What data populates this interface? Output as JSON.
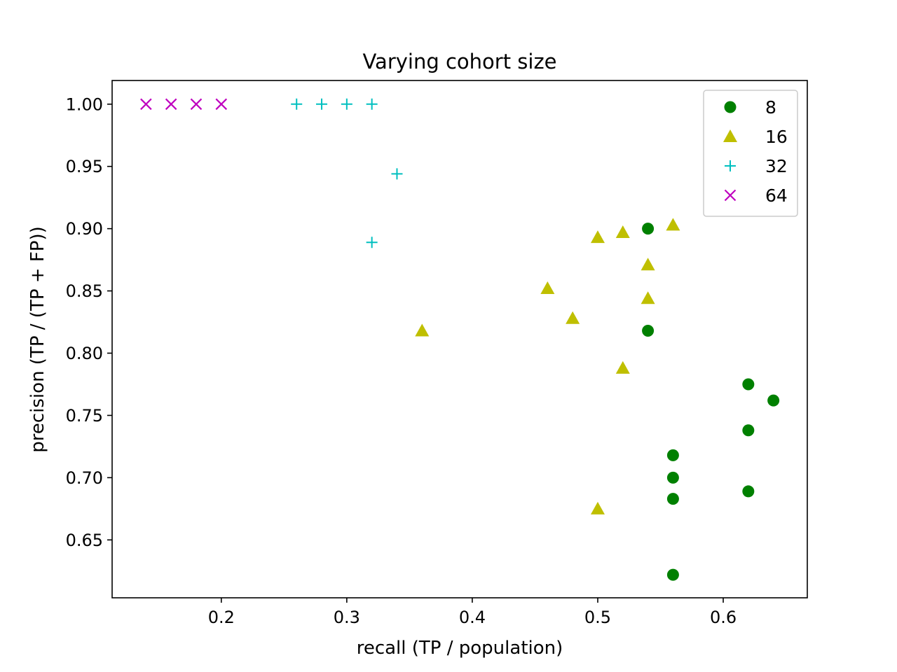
{
  "chart_data": {
    "type": "scatter",
    "title": "Varying cohort size",
    "xlabel": "recall (TP / population)",
    "ylabel": "precision (TP / (TP + FP))",
    "xlim": [
      0.113,
      0.667
    ],
    "ylim": [
      0.6035,
      1.019
    ],
    "xticks": [
      0.2,
      0.3,
      0.4,
      0.5,
      0.6
    ],
    "xtick_labels": [
      "0.2",
      "0.3",
      "0.4",
      "0.5",
      "0.6"
    ],
    "yticks": [
      0.65,
      0.7,
      0.75,
      0.8,
      0.85,
      0.9,
      0.95,
      1.0
    ],
    "ytick_labels": [
      "0.65",
      "0.70",
      "0.75",
      "0.80",
      "0.85",
      "0.90",
      "0.95",
      "1.00"
    ],
    "grid": false,
    "legend_position": "top-right",
    "series": [
      {
        "name": "8",
        "marker": "circle",
        "color": "#008000",
        "points": [
          [
            0.54,
            0.9
          ],
          [
            0.54,
            0.818
          ],
          [
            0.62,
            0.775
          ],
          [
            0.64,
            0.762
          ],
          [
            0.62,
            0.738
          ],
          [
            0.56,
            0.718
          ],
          [
            0.56,
            0.7
          ],
          [
            0.56,
            0.683
          ],
          [
            0.62,
            0.689
          ],
          [
            0.56,
            0.622
          ]
        ]
      },
      {
        "name": "16",
        "marker": "triangle",
        "color": "#bfbf00",
        "points": [
          [
            0.56,
            0.903
          ],
          [
            0.52,
            0.897
          ],
          [
            0.5,
            0.893
          ],
          [
            0.54,
            0.871
          ],
          [
            0.46,
            0.852
          ],
          [
            0.54,
            0.844
          ],
          [
            0.48,
            0.828
          ],
          [
            0.36,
            0.818
          ],
          [
            0.52,
            0.788
          ],
          [
            0.5,
            0.675
          ]
        ]
      },
      {
        "name": "32",
        "marker": "plus",
        "color": "#00bfbf",
        "points": [
          [
            0.26,
            1.0
          ],
          [
            0.28,
            1.0
          ],
          [
            0.3,
            1.0
          ],
          [
            0.32,
            1.0
          ],
          [
            0.34,
            0.944
          ],
          [
            0.32,
            0.889
          ]
        ]
      },
      {
        "name": "64",
        "marker": "x",
        "color": "#bf00bf",
        "points": [
          [
            0.14,
            1.0
          ],
          [
            0.16,
            1.0
          ],
          [
            0.18,
            1.0
          ],
          [
            0.2,
            1.0
          ]
        ]
      }
    ]
  }
}
